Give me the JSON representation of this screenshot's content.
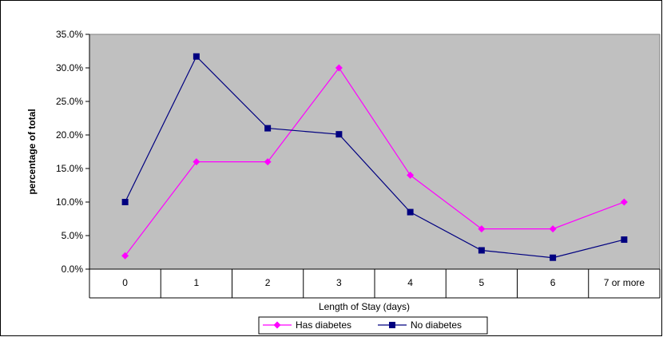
{
  "chart_data": {
    "type": "line",
    "title": "",
    "xlabel": "Length of Stay (days)",
    "ylabel": "percentage of total",
    "categories": [
      "0",
      "1",
      "2",
      "3",
      "4",
      "5",
      "6",
      "7 or more"
    ],
    "ylim": [
      0,
      35
    ],
    "yticks": [
      0,
      5,
      10,
      15,
      20,
      25,
      30,
      35
    ],
    "ytick_labels": [
      "0.0%",
      "5.0%",
      "10.0%",
      "15.0%",
      "20.0%",
      "25.0%",
      "30.0%",
      "35.0%"
    ],
    "grid": false,
    "legend_position": "bottom",
    "plot_background": "#c0c0c0",
    "series": [
      {
        "name": "Has diabetes",
        "values": [
          2.0,
          16.0,
          16.0,
          30.0,
          14.0,
          6.0,
          6.0,
          10.0
        ],
        "color": "#ff00ff",
        "marker": "diamond"
      },
      {
        "name": "No diabetes",
        "values": [
          10.0,
          31.7,
          21.0,
          20.1,
          8.5,
          2.8,
          1.7,
          4.4
        ],
        "color": "#000080",
        "marker": "square"
      }
    ]
  }
}
